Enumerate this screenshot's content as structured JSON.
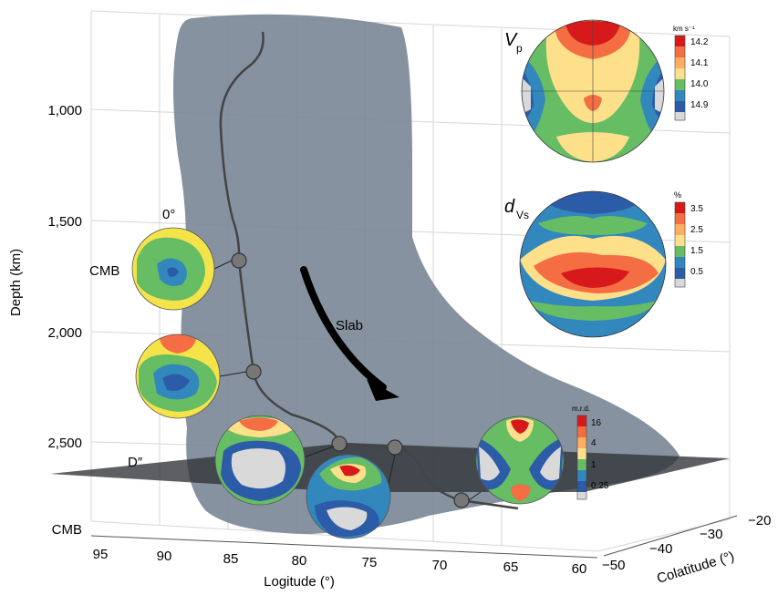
{
  "axes": {
    "y_label": "Depth (km)",
    "y_ticks": [
      "1,000",
      "1,500",
      "2,000",
      "2,500",
      "CMB"
    ],
    "x_label": "Logitude (°)",
    "x_ticks": [
      "95",
      "90",
      "85",
      "80",
      "75",
      "70",
      "65",
      "60"
    ],
    "z_label": "Colatitude (°)",
    "z_ticks": [
      "−20",
      "−30",
      "−40",
      "−50"
    ]
  },
  "labels": {
    "slab": "Slab",
    "d_double_prime": "D″",
    "zero_deg": "0°",
    "cmb_small": "CMB"
  },
  "vp_panel": {
    "symbol": "V",
    "subscript": "p",
    "unit": "km s⁻¹",
    "ticks": [
      "14.2",
      "14.1",
      "14.0",
      "14.9"
    ]
  },
  "dvs_panel": {
    "symbol": "d",
    "subscript": "Vs",
    "unit": "%",
    "ticks": [
      "3.5",
      "2.5",
      "1.5",
      "0.5"
    ]
  },
  "mrd_panel": {
    "unit": "m.r.d.",
    "ticks": [
      "16",
      "4",
      "1",
      "0.25"
    ]
  },
  "colors": {
    "slab_fill": "#7a8696",
    "d_layer": "#3a3d42",
    "arrow": "#000000",
    "scale": [
      "#d7191c",
      "#f46d43",
      "#fee08b",
      "#66bd63",
      "#1a9850",
      "#3288bd",
      "#2c5ba8",
      "#d9d9d9"
    ]
  }
}
